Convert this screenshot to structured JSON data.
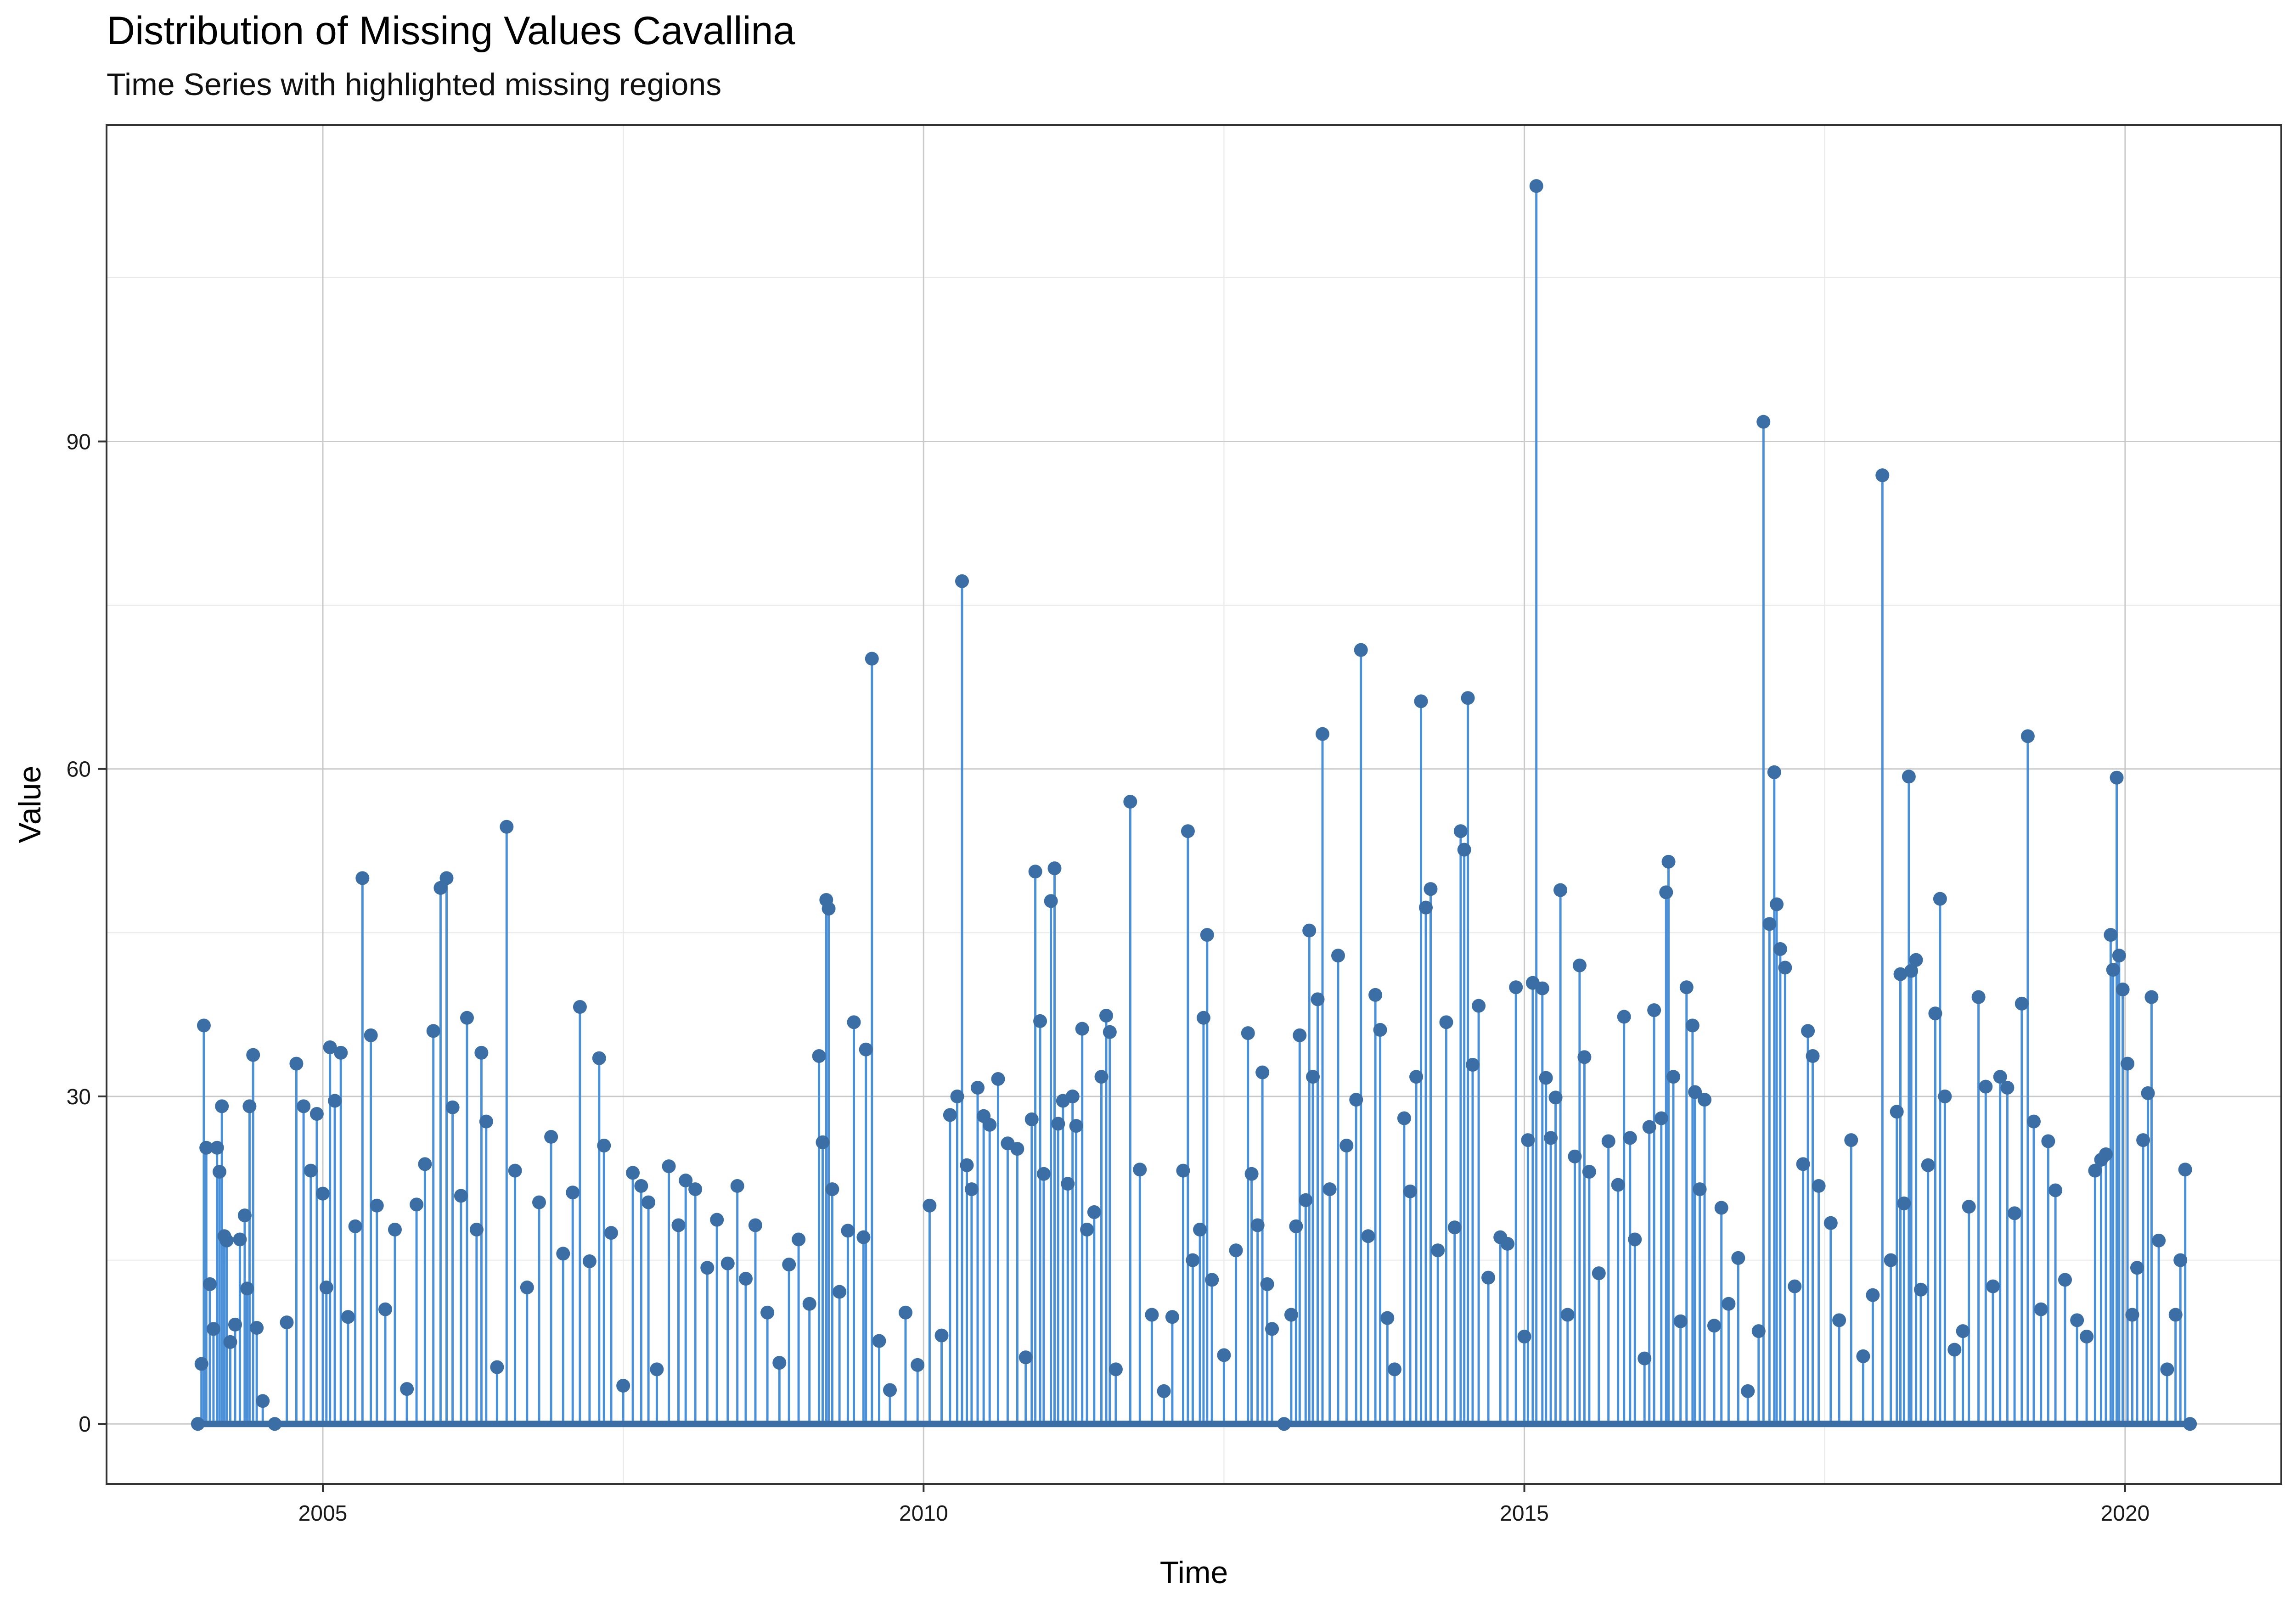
{
  "chart_data": {
    "type": "line",
    "title": "Distribution of Missing Values Cavallina",
    "subtitle": "Time Series with highlighted missing regions",
    "xlabel": "Time",
    "ylabel": "Value",
    "xlim": [
      2003.2,
      2021.3
    ],
    "ylim": [
      -5.5,
      119
    ],
    "x_ticks": [
      2005,
      2010,
      2015,
      2020
    ],
    "y_ticks": [
      0,
      30,
      60,
      90
    ],
    "grid": true,
    "legend": "none",
    "colors": {
      "line": "#4A90D9",
      "points": "#3A6EA5"
    },
    "series": [
      {
        "values_note_free": true,
        "points": [
          [
            2003.96,
            0
          ],
          [
            2003.99,
            5.5
          ],
          [
            2004.01,
            36.5
          ],
          [
            2004.03,
            25.3
          ],
          [
            2004.06,
            12.8
          ],
          [
            2004.09,
            8.7
          ],
          [
            2004.12,
            25.3
          ],
          [
            2004.14,
            23.1
          ],
          [
            2004.16,
            29.1
          ],
          [
            2004.18,
            17.2
          ],
          [
            2004.2,
            16.8
          ],
          [
            2004.23,
            7.5
          ],
          [
            2004.27,
            9.1
          ],
          [
            2004.31,
            16.9
          ],
          [
            2004.35,
            19.1
          ],
          [
            2004.37,
            12.4
          ],
          [
            2004.39,
            29.1
          ],
          [
            2004.42,
            33.8
          ],
          [
            2004.45,
            8.8
          ],
          [
            2004.5,
            2.1
          ],
          [
            2004.6,
            0
          ],
          [
            2004.7,
            9.3
          ],
          [
            2004.78,
            33
          ],
          [
            2004.84,
            29.1
          ],
          [
            2004.9,
            23.2
          ],
          [
            2004.95,
            28.4
          ],
          [
            2005.0,
            21.1
          ],
          [
            2005.03,
            12.5
          ],
          [
            2005.06,
            34.5
          ],
          [
            2005.1,
            29.6
          ],
          [
            2005.15,
            34
          ],
          [
            2005.21,
            9.8
          ],
          [
            2005.27,
            18.1
          ],
          [
            2005.33,
            50
          ],
          [
            2005.4,
            35.6
          ],
          [
            2005.45,
            20
          ],
          [
            2005.52,
            10.5
          ],
          [
            2005.6,
            17.8
          ],
          [
            2005.7,
            3.2
          ],
          [
            2005.78,
            20.1
          ],
          [
            2005.85,
            23.8
          ],
          [
            2005.92,
            36
          ],
          [
            2005.98,
            49.1
          ],
          [
            2006.03,
            50
          ],
          [
            2006.08,
            29
          ],
          [
            2006.15,
            20.9
          ],
          [
            2006.2,
            37.2
          ],
          [
            2006.28,
            17.8
          ],
          [
            2006.32,
            34
          ],
          [
            2006.36,
            27.7
          ],
          [
            2006.45,
            5.2
          ],
          [
            2006.53,
            54.7
          ],
          [
            2006.6,
            23.2
          ],
          [
            2006.7,
            12.5
          ],
          [
            2006.8,
            20.3
          ],
          [
            2006.9,
            26.3
          ],
          [
            2007.0,
            15.6
          ],
          [
            2007.08,
            21.2
          ],
          [
            2007.14,
            38.2
          ],
          [
            2007.22,
            14.9
          ],
          [
            2007.3,
            33.5
          ],
          [
            2007.34,
            25.5
          ],
          [
            2007.4,
            17.5
          ],
          [
            2007.5,
            3.5
          ],
          [
            2007.58,
            23
          ],
          [
            2007.65,
            21.8
          ],
          [
            2007.71,
            20.3
          ],
          [
            2007.78,
            5
          ],
          [
            2007.88,
            23.6
          ],
          [
            2007.96,
            18.2
          ],
          [
            2008.02,
            22.3
          ],
          [
            2008.1,
            21.5
          ],
          [
            2008.2,
            14.3
          ],
          [
            2008.28,
            18.7
          ],
          [
            2008.37,
            14.7
          ],
          [
            2008.45,
            21.8
          ],
          [
            2008.52,
            13.3
          ],
          [
            2008.6,
            18.2
          ],
          [
            2008.7,
            10.2
          ],
          [
            2008.8,
            5.6
          ],
          [
            2008.88,
            14.6
          ],
          [
            2008.96,
            16.9
          ],
          [
            2009.05,
            11
          ],
          [
            2009.13,
            33.7
          ],
          [
            2009.16,
            25.8
          ],
          [
            2009.19,
            48
          ],
          [
            2009.21,
            47.2
          ],
          [
            2009.24,
            21.5
          ],
          [
            2009.3,
            12.1
          ],
          [
            2009.37,
            17.7
          ],
          [
            2009.42,
            36.8
          ],
          [
            2009.5,
            17.1
          ],
          [
            2009.52,
            34.3
          ],
          [
            2009.57,
            70.1
          ],
          [
            2009.63,
            7.6
          ],
          [
            2009.72,
            3.1
          ],
          [
            2009.85,
            10.2
          ],
          [
            2009.95,
            5.4
          ],
          [
            2010.05,
            20
          ],
          [
            2010.15,
            8.1
          ],
          [
            2010.22,
            28.3
          ],
          [
            2010.28,
            30
          ],
          [
            2010.32,
            77.2
          ],
          [
            2010.36,
            23.7
          ],
          [
            2010.4,
            21.5
          ],
          [
            2010.45,
            30.8
          ],
          [
            2010.5,
            28.2
          ],
          [
            2010.55,
            27.4
          ],
          [
            2010.62,
            31.6
          ],
          [
            2010.7,
            25.7
          ],
          [
            2010.78,
            25.2
          ],
          [
            2010.85,
            6.1
          ],
          [
            2010.9,
            27.9
          ],
          [
            2010.93,
            50.6
          ],
          [
            2010.97,
            36.9
          ],
          [
            2011.0,
            22.9
          ],
          [
            2011.06,
            47.9
          ],
          [
            2011.09,
            50.9
          ],
          [
            2011.12,
            27.5
          ],
          [
            2011.16,
            29.6
          ],
          [
            2011.2,
            22
          ],
          [
            2011.24,
            30
          ],
          [
            2011.27,
            27.3
          ],
          [
            2011.32,
            36.2
          ],
          [
            2011.36,
            17.8
          ],
          [
            2011.42,
            19.4
          ],
          [
            2011.48,
            31.8
          ],
          [
            2011.52,
            37.4
          ],
          [
            2011.55,
            35.9
          ],
          [
            2011.6,
            5
          ],
          [
            2011.72,
            57
          ],
          [
            2011.8,
            23.3
          ],
          [
            2011.9,
            10
          ],
          [
            2012.0,
            3
          ],
          [
            2012.07,
            9.8
          ],
          [
            2012.16,
            23.2
          ],
          [
            2012.2,
            54.3
          ],
          [
            2012.24,
            15
          ],
          [
            2012.3,
            17.8
          ],
          [
            2012.33,
            37.2
          ],
          [
            2012.36,
            44.8
          ],
          [
            2012.4,
            13.2
          ],
          [
            2012.5,
            6.3
          ],
          [
            2012.6,
            15.9
          ],
          [
            2012.7,
            35.8
          ],
          [
            2012.73,
            22.9
          ],
          [
            2012.78,
            18.2
          ],
          [
            2012.82,
            32.2
          ],
          [
            2012.86,
            12.8
          ],
          [
            2012.9,
            8.7
          ],
          [
            2013.0,
            0
          ],
          [
            2013.06,
            10
          ],
          [
            2013.1,
            18.1
          ],
          [
            2013.13,
            35.6
          ],
          [
            2013.18,
            20.5
          ],
          [
            2013.21,
            45.2
          ],
          [
            2013.24,
            31.8
          ],
          [
            2013.28,
            38.9
          ],
          [
            2013.32,
            63.2
          ],
          [
            2013.38,
            21.5
          ],
          [
            2013.45,
            42.9
          ],
          [
            2013.52,
            25.5
          ],
          [
            2013.6,
            29.7
          ],
          [
            2013.64,
            70.9
          ],
          [
            2013.7,
            17.2
          ],
          [
            2013.76,
            39.3
          ],
          [
            2013.8,
            36.1
          ],
          [
            2013.86,
            9.7
          ],
          [
            2013.92,
            5
          ],
          [
            2014.0,
            28
          ],
          [
            2014.05,
            21.3
          ],
          [
            2014.1,
            31.8
          ],
          [
            2014.14,
            66.2
          ],
          [
            2014.18,
            47.3
          ],
          [
            2014.22,
            49
          ],
          [
            2014.28,
            15.9
          ],
          [
            2014.35,
            36.8
          ],
          [
            2014.42,
            18
          ],
          [
            2014.47,
            54.3
          ],
          [
            2014.5,
            52.6
          ],
          [
            2014.53,
            66.5
          ],
          [
            2014.57,
            32.9
          ],
          [
            2014.62,
            38.3
          ],
          [
            2014.7,
            13.4
          ],
          [
            2014.8,
            17.1
          ],
          [
            2014.86,
            16.5
          ],
          [
            2014.93,
            40
          ],
          [
            2015.0,
            8
          ],
          [
            2015.03,
            26
          ],
          [
            2015.07,
            40.4
          ],
          [
            2015.1,
            113.4
          ],
          [
            2015.15,
            39.9
          ],
          [
            2015.18,
            31.7
          ],
          [
            2015.22,
            26.2
          ],
          [
            2015.26,
            29.9
          ],
          [
            2015.3,
            48.9
          ],
          [
            2015.36,
            10
          ],
          [
            2015.42,
            24.5
          ],
          [
            2015.46,
            42
          ],
          [
            2015.5,
            33.6
          ],
          [
            2015.54,
            23.1
          ],
          [
            2015.62,
            13.8
          ],
          [
            2015.7,
            25.9
          ],
          [
            2015.78,
            21.9
          ],
          [
            2015.83,
            37.3
          ],
          [
            2015.88,
            26.2
          ],
          [
            2015.92,
            16.9
          ],
          [
            2016.0,
            6
          ],
          [
            2016.04,
            27.2
          ],
          [
            2016.08,
            37.9
          ],
          [
            2016.14,
            28
          ],
          [
            2016.18,
            48.7
          ],
          [
            2016.2,
            51.5
          ],
          [
            2016.24,
            31.8
          ],
          [
            2016.3,
            9.4
          ],
          [
            2016.35,
            40
          ],
          [
            2016.4,
            36.5
          ],
          [
            2016.42,
            30.4
          ],
          [
            2016.46,
            21.5
          ],
          [
            2016.5,
            29.7
          ],
          [
            2016.58,
            9
          ],
          [
            2016.64,
            19.8
          ],
          [
            2016.7,
            11
          ],
          [
            2016.78,
            15.2
          ],
          [
            2016.86,
            3
          ],
          [
            2016.95,
            8.5
          ],
          [
            2016.99,
            91.8
          ],
          [
            2017.04,
            45.8
          ],
          [
            2017.08,
            59.7
          ],
          [
            2017.1,
            47.6
          ],
          [
            2017.13,
            43.5
          ],
          [
            2017.17,
            41.8
          ],
          [
            2017.25,
            12.6
          ],
          [
            2017.32,
            23.8
          ],
          [
            2017.36,
            36
          ],
          [
            2017.4,
            33.7
          ],
          [
            2017.45,
            21.8
          ],
          [
            2017.55,
            18.4
          ],
          [
            2017.62,
            9.5
          ],
          [
            2017.72,
            26
          ],
          [
            2017.82,
            6.2
          ],
          [
            2017.9,
            11.8
          ],
          [
            2017.98,
            86.9
          ],
          [
            2018.05,
            15
          ],
          [
            2018.1,
            28.6
          ],
          [
            2018.13,
            41.2
          ],
          [
            2018.16,
            20.2
          ],
          [
            2018.2,
            59.3
          ],
          [
            2018.22,
            41.5
          ],
          [
            2018.26,
            42.5
          ],
          [
            2018.3,
            12.3
          ],
          [
            2018.36,
            23.7
          ],
          [
            2018.42,
            37.6
          ],
          [
            2018.46,
            48.1
          ],
          [
            2018.5,
            30
          ],
          [
            2018.58,
            6.8
          ],
          [
            2018.65,
            8.5
          ],
          [
            2018.7,
            19.9
          ],
          [
            2018.78,
            39.1
          ],
          [
            2018.84,
            30.9
          ],
          [
            2018.9,
            12.6
          ],
          [
            2018.96,
            31.8
          ],
          [
            2019.02,
            30.8
          ],
          [
            2019.08,
            19.3
          ],
          [
            2019.14,
            38.5
          ],
          [
            2019.19,
            63
          ],
          [
            2019.24,
            27.7
          ],
          [
            2019.3,
            10.5
          ],
          [
            2019.36,
            25.9
          ],
          [
            2019.42,
            21.4
          ],
          [
            2019.5,
            13.2
          ],
          [
            2019.6,
            9.5
          ],
          [
            2019.68,
            8
          ],
          [
            2019.75,
            23.2
          ],
          [
            2019.8,
            24.2
          ],
          [
            2019.84,
            24.7
          ],
          [
            2019.88,
            44.8
          ],
          [
            2019.9,
            41.6
          ],
          [
            2019.93,
            59.2
          ],
          [
            2019.95,
            42.9
          ],
          [
            2019.98,
            39.8
          ],
          [
            2020.02,
            33
          ],
          [
            2020.06,
            10
          ],
          [
            2020.1,
            14.3
          ],
          [
            2020.15,
            26
          ],
          [
            2020.19,
            30.3
          ],
          [
            2020.22,
            39.1
          ],
          [
            2020.28,
            16.8
          ],
          [
            2020.35,
            5
          ],
          [
            2020.42,
            10
          ],
          [
            2020.46,
            15
          ],
          [
            2020.5,
            23.3
          ],
          [
            2020.54,
            0
          ]
        ]
      }
    ]
  }
}
